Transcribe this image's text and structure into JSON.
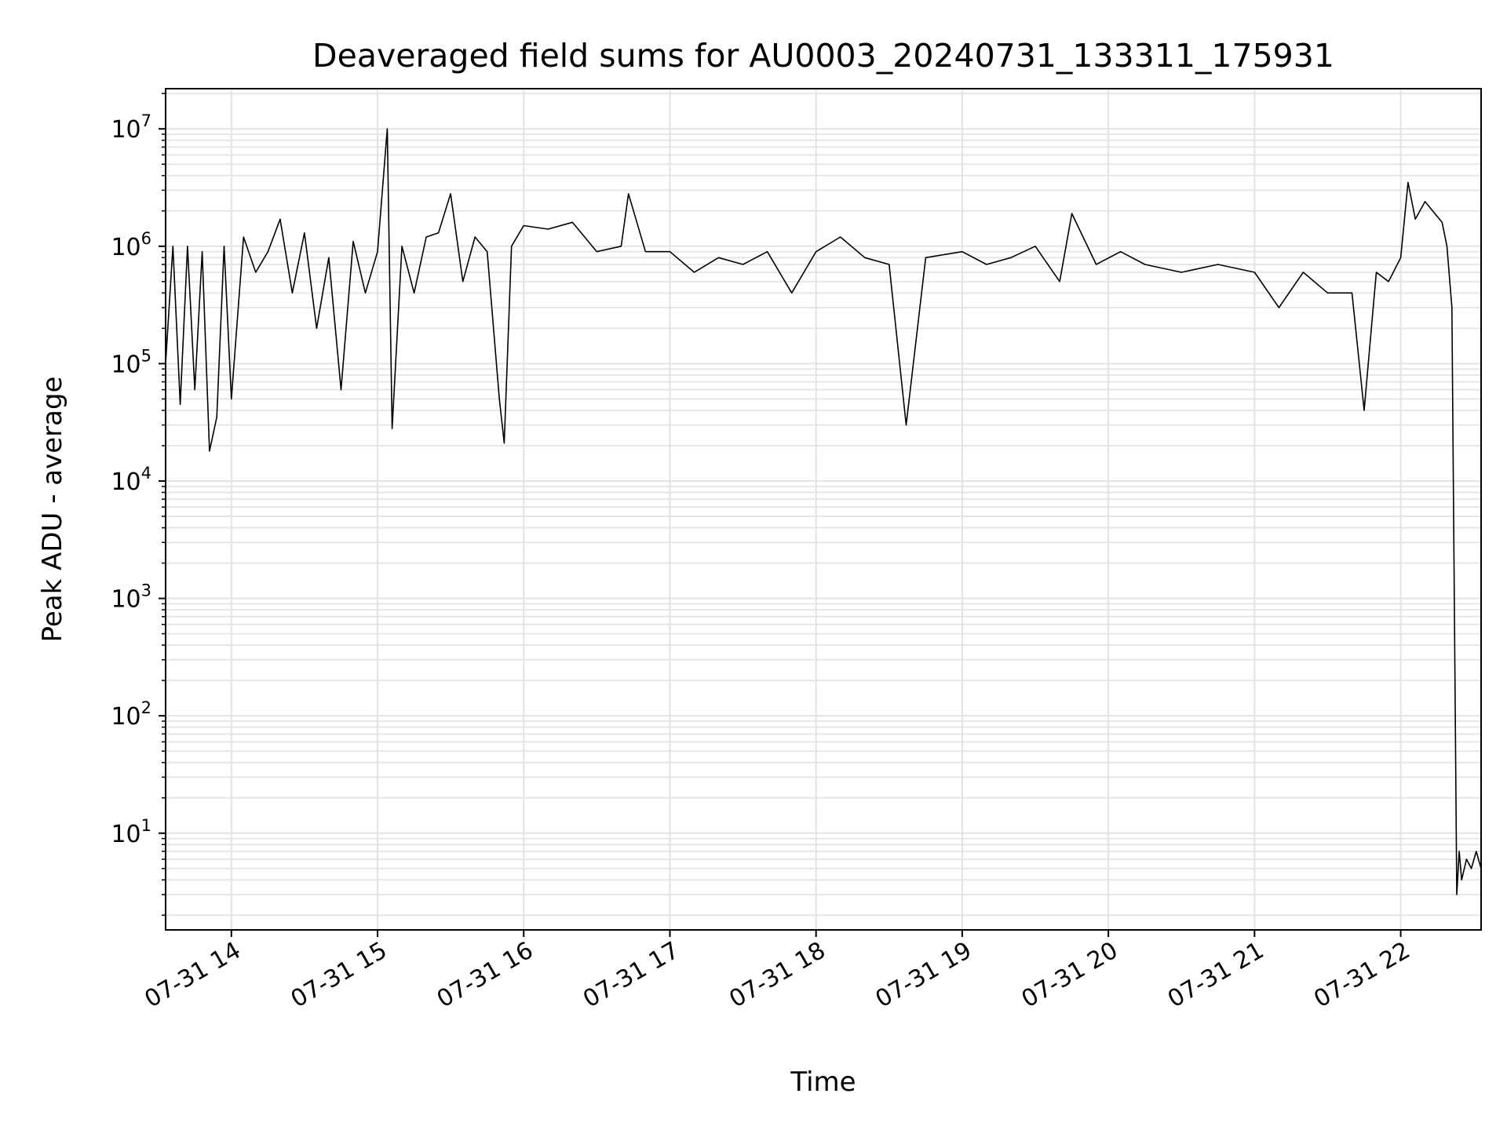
{
  "chart_data": {
    "type": "line",
    "title": "Deaveraged field sums for AU0003_20240731_133311_175931",
    "xlabel": "Time",
    "ylabel": "Peak ADU - average",
    "yscale": "log",
    "ylim": [
      1.5,
      22000000
    ],
    "xlim": [
      "07-31 13:33",
      "07-31 22:33"
    ],
    "grid": true,
    "legend": "none",
    "line_color": "#000000",
    "x_ticks": [
      "07-31 14",
      "07-31 15",
      "07-31 16",
      "07-31 17",
      "07-31 18",
      "07-31 19",
      "07-31 20",
      "07-31 21",
      "07-31 22"
    ],
    "y_ticks": [
      {
        "value": 10,
        "base": "10",
        "exp": "1"
      },
      {
        "value": 100,
        "base": "10",
        "exp": "2"
      },
      {
        "value": 1000,
        "base": "10",
        "exp": "3"
      },
      {
        "value": 10000,
        "base": "10",
        "exp": "4"
      },
      {
        "value": 100000,
        "base": "10",
        "exp": "5"
      },
      {
        "value": 1000000,
        "base": "10",
        "exp": "6"
      },
      {
        "value": 10000000,
        "base": "10",
        "exp": "7"
      }
    ],
    "series": [
      {
        "x": [
          "07-31 13:33",
          "07-31 13:36",
          "07-31 13:39",
          "07-31 13:42",
          "07-31 13:45",
          "07-31 13:48",
          "07-31 13:51",
          "07-31 13:54",
          "07-31 13:57",
          "07-31 14:00",
          "07-31 14:05",
          "07-31 14:10",
          "07-31 14:15",
          "07-31 14:20",
          "07-31 14:25",
          "07-31 14:30",
          "07-31 14:35",
          "07-31 14:40",
          "07-31 14:45",
          "07-31 14:50",
          "07-31 14:55",
          "07-31 15:00",
          "07-31 15:04",
          "07-31 15:06",
          "07-31 15:10",
          "07-31 15:15",
          "07-31 15:20",
          "07-31 15:25",
          "07-31 15:30",
          "07-31 15:35",
          "07-31 15:40",
          "07-31 15:45",
          "07-31 15:50",
          "07-31 15:52",
          "07-31 15:55",
          "07-31 16:00",
          "07-31 16:10",
          "07-31 16:20",
          "07-31 16:30",
          "07-31 16:40",
          "07-31 16:43",
          "07-31 16:50",
          "07-31 17:00",
          "07-31 17:10",
          "07-31 17:20",
          "07-31 17:30",
          "07-31 17:40",
          "07-31 17:50",
          "07-31 18:00",
          "07-31 18:10",
          "07-31 18:20",
          "07-31 18:30",
          "07-31 18:37",
          "07-31 18:45",
          "07-31 19:00",
          "07-31 19:10",
          "07-31 19:20",
          "07-31 19:30",
          "07-31 19:40",
          "07-31 19:45",
          "07-31 19:55",
          "07-31 20:05",
          "07-31 20:15",
          "07-31 20:30",
          "07-31 20:45",
          "07-31 21:00",
          "07-31 21:10",
          "07-31 21:20",
          "07-31 21:30",
          "07-31 21:40",
          "07-31 21:45",
          "07-31 21:50",
          "07-31 21:55",
          "07-31 22:00",
          "07-31 22:03",
          "07-31 22:06",
          "07-31 22:10",
          "07-31 22:14",
          "07-31 22:17",
          "07-31 22:19",
          "07-31 22:21",
          "07-31 22:23",
          "07-31 22:24",
          "07-31 22:25",
          "07-31 22:27",
          "07-31 22:29",
          "07-31 22:31",
          "07-31 22:33"
        ],
        "y": [
          100000,
          1000000,
          45000,
          1000000,
          60000,
          900000,
          18000,
          35000,
          1000000,
          50000,
          1200000,
          600000,
          900000,
          1700000,
          400000,
          1300000,
          200000,
          800000,
          60000,
          1100000,
          400000,
          900000,
          10000000,
          28000,
          1000000,
          400000,
          1200000,
          1300000,
          2800000,
          500000,
          1200000,
          900000,
          50000,
          21000,
          1000000,
          1500000,
          1400000,
          1600000,
          900000,
          1000000,
          2800000,
          900000,
          900000,
          600000,
          800000,
          700000,
          900000,
          400000,
          900000,
          1200000,
          800000,
          700000,
          30000,
          800000,
          900000,
          700000,
          800000,
          1000000,
          500000,
          1900000,
          700000,
          900000,
          700000,
          600000,
          700000,
          600000,
          300000,
          600000,
          400000,
          400000,
          40000,
          600000,
          500000,
          800000,
          3500000,
          1700000,
          2400000,
          1900000,
          1600000,
          1000000,
          300000,
          3,
          7,
          4,
          6,
          5,
          7,
          5
        ]
      }
    ]
  }
}
